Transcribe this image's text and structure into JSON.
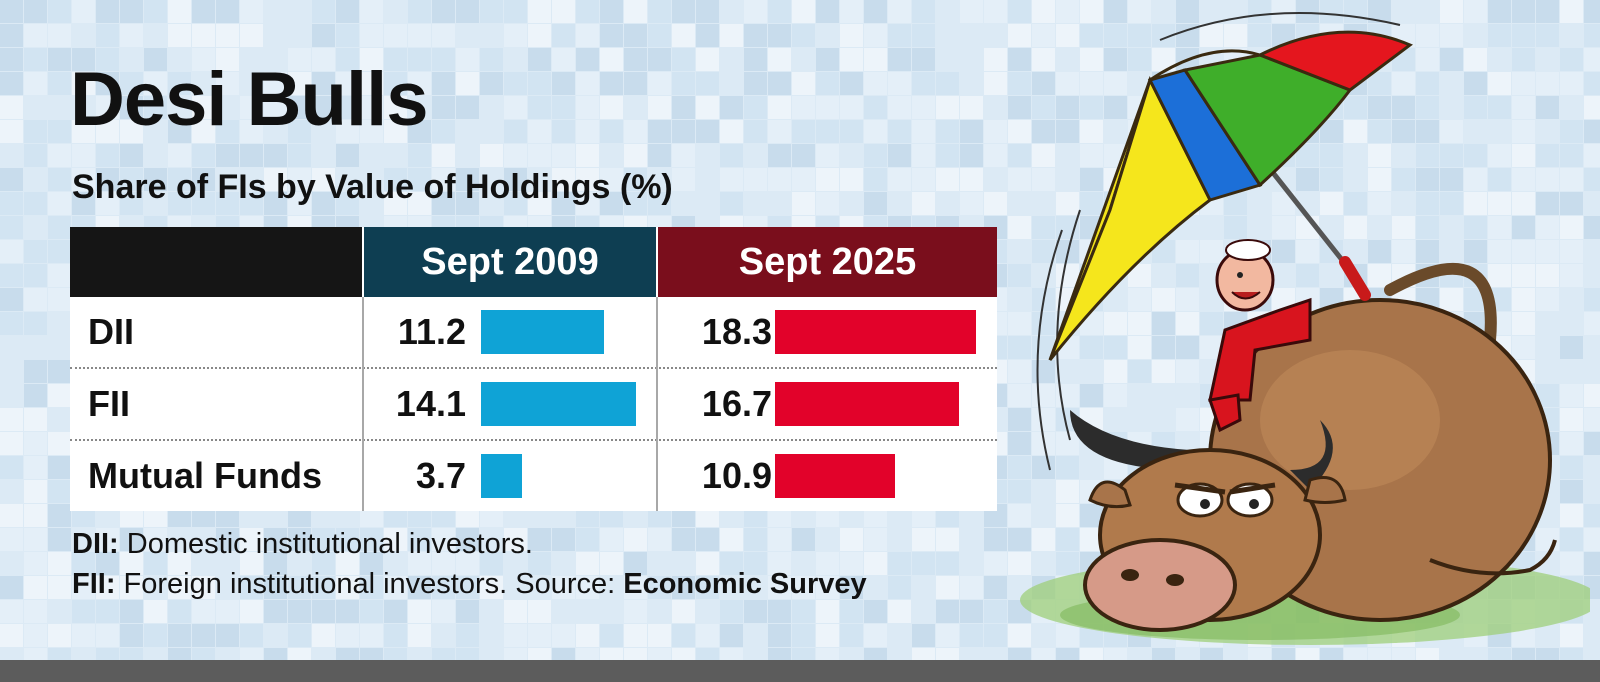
{
  "title": "Desi Bulls",
  "subtitle": "Share of FIs by Value of Holdings (%)",
  "chart_data": {
    "type": "bar",
    "title": "Desi Bulls",
    "subtitle": "Share of FIs by Value of Holdings (%)",
    "categories": [
      "DII",
      "FII",
      "Mutual Funds"
    ],
    "series": [
      {
        "name": "Sept 2009",
        "values": [
          11.2,
          14.1,
          3.7
        ],
        "labels": [
          "11.2",
          "14.1",
          "3.7"
        ],
        "color": "#0fa3d6"
      },
      {
        "name": "Sept 2025",
        "values": [
          18.3,
          16.7,
          10.9
        ],
        "labels": [
          "18.3",
          "16.7",
          "10.9"
        ],
        "color": "#e2022a"
      }
    ]
  },
  "footnotes": {
    "dii_abbr": "DII:",
    "dii_text": " Domestic institutional investors.",
    "fii_abbr": "FII:",
    "fii_text": " Foreign institutional investors. Source: ",
    "source": "Economic Survey"
  },
  "colors": {
    "header_2009": "#0e3e52",
    "header_2025": "#7a0e1c",
    "header_blank": "#151515",
    "background": "#dceaf5"
  },
  "illustration": "bull-with-umbrella-cartoon-icon"
}
